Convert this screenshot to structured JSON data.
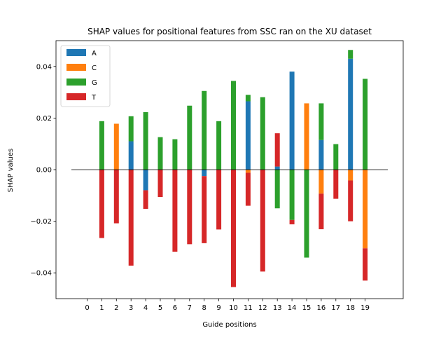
{
  "chart_data": {
    "type": "bar",
    "stacked": true,
    "title": "SHAP values for positional features from SSC ran on the XU dataset",
    "xlabel": "Guide positions",
    "ylabel": "SHAP values",
    "x": [
      "0",
      "1",
      "2",
      "3",
      "4",
      "5",
      "6",
      "7",
      "8",
      "9",
      "10",
      "11",
      "12",
      "13",
      "14",
      "15",
      "16",
      "17",
      "18",
      "19"
    ],
    "ylim": [
      -0.05,
      0.05
    ],
    "yticks": [
      -0.04,
      -0.02,
      0.0,
      0.02,
      0.04
    ],
    "ytick_labels": [
      "−0.04",
      "−0.02",
      "0.00",
      "0.02",
      "0.04"
    ],
    "zero_line": true,
    "grid": false,
    "legend_position": "top-left",
    "series": [
      {
        "name": "A",
        "color": "#1f77b4",
        "values": [
          0,
          0,
          0,
          0.011,
          -0.008,
          0,
          0,
          0,
          -0.0025,
          0,
          0,
          0.0265,
          0,
          0.0012,
          0.038,
          0,
          0.0115,
          0,
          0.043,
          0
        ]
      },
      {
        "name": "C",
        "color": "#ff7f0e",
        "values": [
          0,
          0,
          0.0178,
          0,
          0,
          0,
          0,
          0,
          0,
          0,
          0,
          -0.0012,
          0,
          0,
          0,
          0.0257,
          -0.0093,
          0,
          -0.0042,
          -0.0305
        ]
      },
      {
        "name": "G",
        "color": "#2ca02c",
        "values": [
          0,
          0.0188,
          0,
          0.0097,
          0.0223,
          0.0126,
          0.0118,
          0.0248,
          0.0305,
          0.0188,
          0.0344,
          0.0025,
          0.0281,
          -0.015,
          -0.0195,
          -0.0341,
          0.0142,
          0.0099,
          0.0034,
          0.0352
        ]
      },
      {
        "name": "T",
        "color": "#d62728",
        "values": [
          0,
          -0.0265,
          -0.0208,
          -0.0372,
          -0.0072,
          -0.0106,
          -0.0318,
          -0.0289,
          -0.026,
          -0.0232,
          -0.0455,
          -0.0128,
          -0.0395,
          0.0129,
          -0.0017,
          0,
          -0.0138,
          -0.0113,
          -0.0158,
          -0.0125
        ]
      }
    ]
  }
}
